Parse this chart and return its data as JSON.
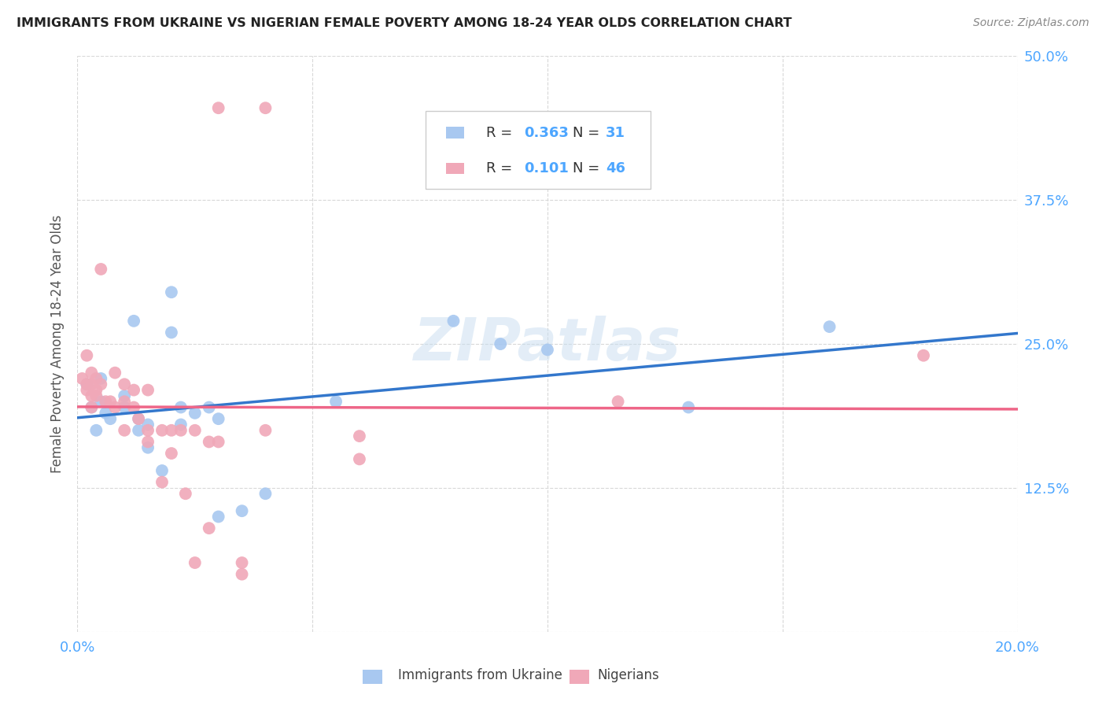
{
  "title": "IMMIGRANTS FROM UKRAINE VS NIGERIAN FEMALE POVERTY AMONG 18-24 YEAR OLDS CORRELATION CHART",
  "source": "Source: ZipAtlas.com",
  "ylabel": "Female Poverty Among 18-24 Year Olds",
  "xlim": [
    0.0,
    0.2
  ],
  "ylim": [
    0.0,
    0.5
  ],
  "background_color": "#ffffff",
  "grid_color": "#d8d8d8",
  "title_color": "#222222",
  "axis_color": "#4da6ff",
  "ukraine_color": "#a8c8f0",
  "nigeria_color": "#f0a8b8",
  "ukraine_line_color": "#3377cc",
  "nigeria_line_color": "#ee6688",
  "ukraine_scatter": [
    [
      0.002,
      0.215
    ],
    [
      0.003,
      0.195
    ],
    [
      0.004,
      0.175
    ],
    [
      0.005,
      0.22
    ],
    [
      0.005,
      0.2
    ],
    [
      0.006,
      0.19
    ],
    [
      0.007,
      0.185
    ],
    [
      0.01,
      0.195
    ],
    [
      0.01,
      0.205
    ],
    [
      0.012,
      0.27
    ],
    [
      0.013,
      0.185
    ],
    [
      0.013,
      0.175
    ],
    [
      0.015,
      0.16
    ],
    [
      0.015,
      0.18
    ],
    [
      0.018,
      0.14
    ],
    [
      0.02,
      0.295
    ],
    [
      0.02,
      0.26
    ],
    [
      0.022,
      0.195
    ],
    [
      0.022,
      0.18
    ],
    [
      0.025,
      0.19
    ],
    [
      0.028,
      0.195
    ],
    [
      0.03,
      0.185
    ],
    [
      0.03,
      0.1
    ],
    [
      0.035,
      0.105
    ],
    [
      0.04,
      0.12
    ],
    [
      0.055,
      0.2
    ],
    [
      0.08,
      0.27
    ],
    [
      0.09,
      0.25
    ],
    [
      0.1,
      0.245
    ],
    [
      0.13,
      0.195
    ],
    [
      0.16,
      0.265
    ]
  ],
  "nigeria_scatter": [
    [
      0.001,
      0.22
    ],
    [
      0.002,
      0.24
    ],
    [
      0.002,
      0.215
    ],
    [
      0.002,
      0.21
    ],
    [
      0.003,
      0.225
    ],
    [
      0.003,
      0.215
    ],
    [
      0.003,
      0.205
    ],
    [
      0.003,
      0.195
    ],
    [
      0.004,
      0.22
    ],
    [
      0.004,
      0.21
    ],
    [
      0.004,
      0.205
    ],
    [
      0.005,
      0.315
    ],
    [
      0.005,
      0.215
    ],
    [
      0.006,
      0.2
    ],
    [
      0.007,
      0.2
    ],
    [
      0.008,
      0.225
    ],
    [
      0.008,
      0.195
    ],
    [
      0.01,
      0.215
    ],
    [
      0.01,
      0.2
    ],
    [
      0.01,
      0.175
    ],
    [
      0.012,
      0.21
    ],
    [
      0.012,
      0.195
    ],
    [
      0.013,
      0.185
    ],
    [
      0.015,
      0.21
    ],
    [
      0.015,
      0.175
    ],
    [
      0.015,
      0.165
    ],
    [
      0.018,
      0.175
    ],
    [
      0.018,
      0.13
    ],
    [
      0.02,
      0.175
    ],
    [
      0.02,
      0.155
    ],
    [
      0.022,
      0.175
    ],
    [
      0.023,
      0.12
    ],
    [
      0.025,
      0.175
    ],
    [
      0.025,
      0.06
    ],
    [
      0.028,
      0.165
    ],
    [
      0.028,
      0.09
    ],
    [
      0.03,
      0.455
    ],
    [
      0.03,
      0.165
    ],
    [
      0.035,
      0.06
    ],
    [
      0.035,
      0.05
    ],
    [
      0.04,
      0.455
    ],
    [
      0.04,
      0.175
    ],
    [
      0.06,
      0.17
    ],
    [
      0.06,
      0.15
    ],
    [
      0.115,
      0.2
    ],
    [
      0.18,
      0.24
    ]
  ]
}
